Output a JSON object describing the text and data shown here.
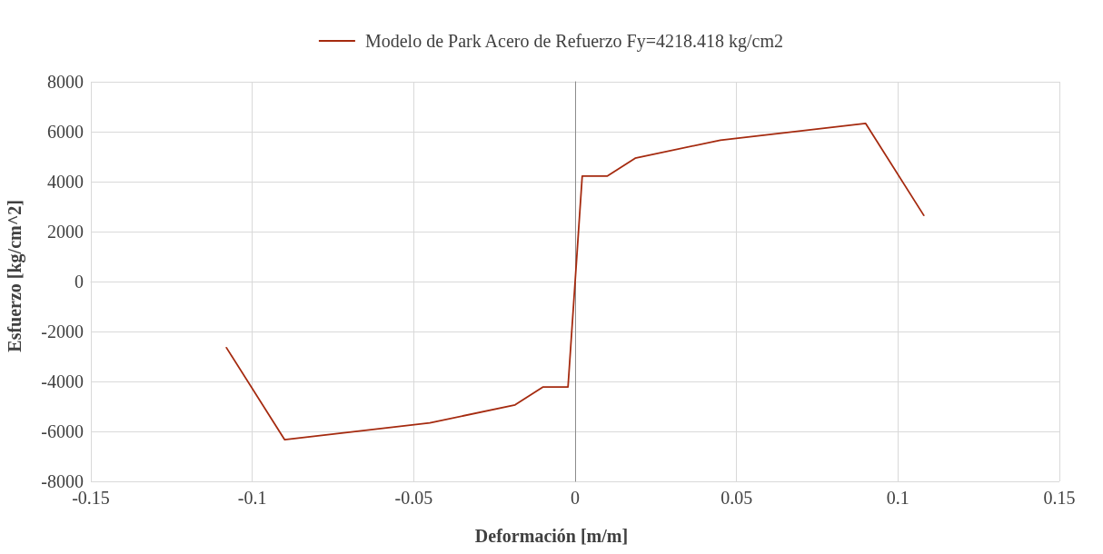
{
  "chart_data": {
    "type": "line",
    "xlabel": "Deformación [m/m]",
    "ylabel": "Esfuerzo [kg/cm^2]",
    "x": [
      -0.108,
      -0.09,
      -0.045,
      -0.0186,
      -0.0099,
      -0.0022,
      0,
      0.0022,
      0.0099,
      0.0186,
      0.045,
      0.09,
      0.108
    ],
    "series": [
      {
        "name": "Modelo de Park Acero de Refuerzo Fy=4218.418 kg/cm2",
        "color": "#a52a0f",
        "values": [
          -2650,
          -6330,
          -5660,
          -4940,
          -4220,
          -4220,
          0,
          4220,
          4220,
          4940,
          5660,
          6330,
          2650
        ]
      }
    ],
    "xlim": [
      -0.15,
      0.15
    ],
    "xticks": [
      -0.15,
      -0.1,
      -0.05,
      0,
      0.05,
      0.1,
      0.15
    ],
    "ylim": [
      -8000,
      8000
    ],
    "yticks": [
      -8000,
      -6000,
      -4000,
      -2000,
      0,
      2000,
      4000,
      6000,
      8000
    ],
    "grid": true,
    "legend": "top",
    "marker": "none",
    "line_style": "solid"
  }
}
